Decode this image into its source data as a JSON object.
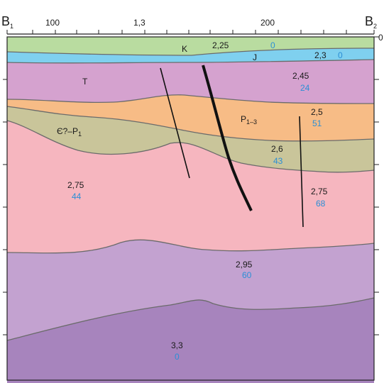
{
  "profile": {
    "left_label": "B",
    "left_sub": "1",
    "right_label": "B",
    "right_sub": "2",
    "x_ticks": [
      "100",
      "1,3",
      "200"
    ],
    "right_edge_tick": "0"
  },
  "layers": [
    {
      "key": "k",
      "age": "K",
      "age_sub": "",
      "density": "2,25",
      "velocity": "0",
      "color": "#b9dca0"
    },
    {
      "key": "j",
      "age": "J",
      "age_sub": "",
      "density": "2,3",
      "velocity": "0",
      "color": "#7fd0ef"
    },
    {
      "key": "t",
      "age": "T",
      "age_sub": "",
      "density": "2,45",
      "velocity": "24",
      "color": "#d5a2cf"
    },
    {
      "key": "p13",
      "age": "P",
      "age_sub": "1–3",
      "density": "2,5",
      "velocity": "51",
      "color": "#f7bc86"
    },
    {
      "key": "cp",
      "age": "Є?–P",
      "age_sub": "1",
      "density": "2,6",
      "velocity": "43",
      "color": "#c9c59a"
    },
    {
      "key": "l275a",
      "age": "",
      "age_sub": "",
      "density": "2,75",
      "velocity": "44",
      "color": "#f6b6bf"
    },
    {
      "key": "l275b",
      "age": "",
      "age_sub": "",
      "density": "2,75",
      "velocity": "68",
      "color": "#f6b6bf"
    },
    {
      "key": "l295",
      "age": "",
      "age_sub": "",
      "density": "2,95",
      "velocity": "60",
      "color": "#c3a2d0"
    },
    {
      "key": "l33",
      "age": "",
      "age_sub": "",
      "density": "3,3",
      "velocity": "0",
      "color": "#a784bd"
    }
  ]
}
